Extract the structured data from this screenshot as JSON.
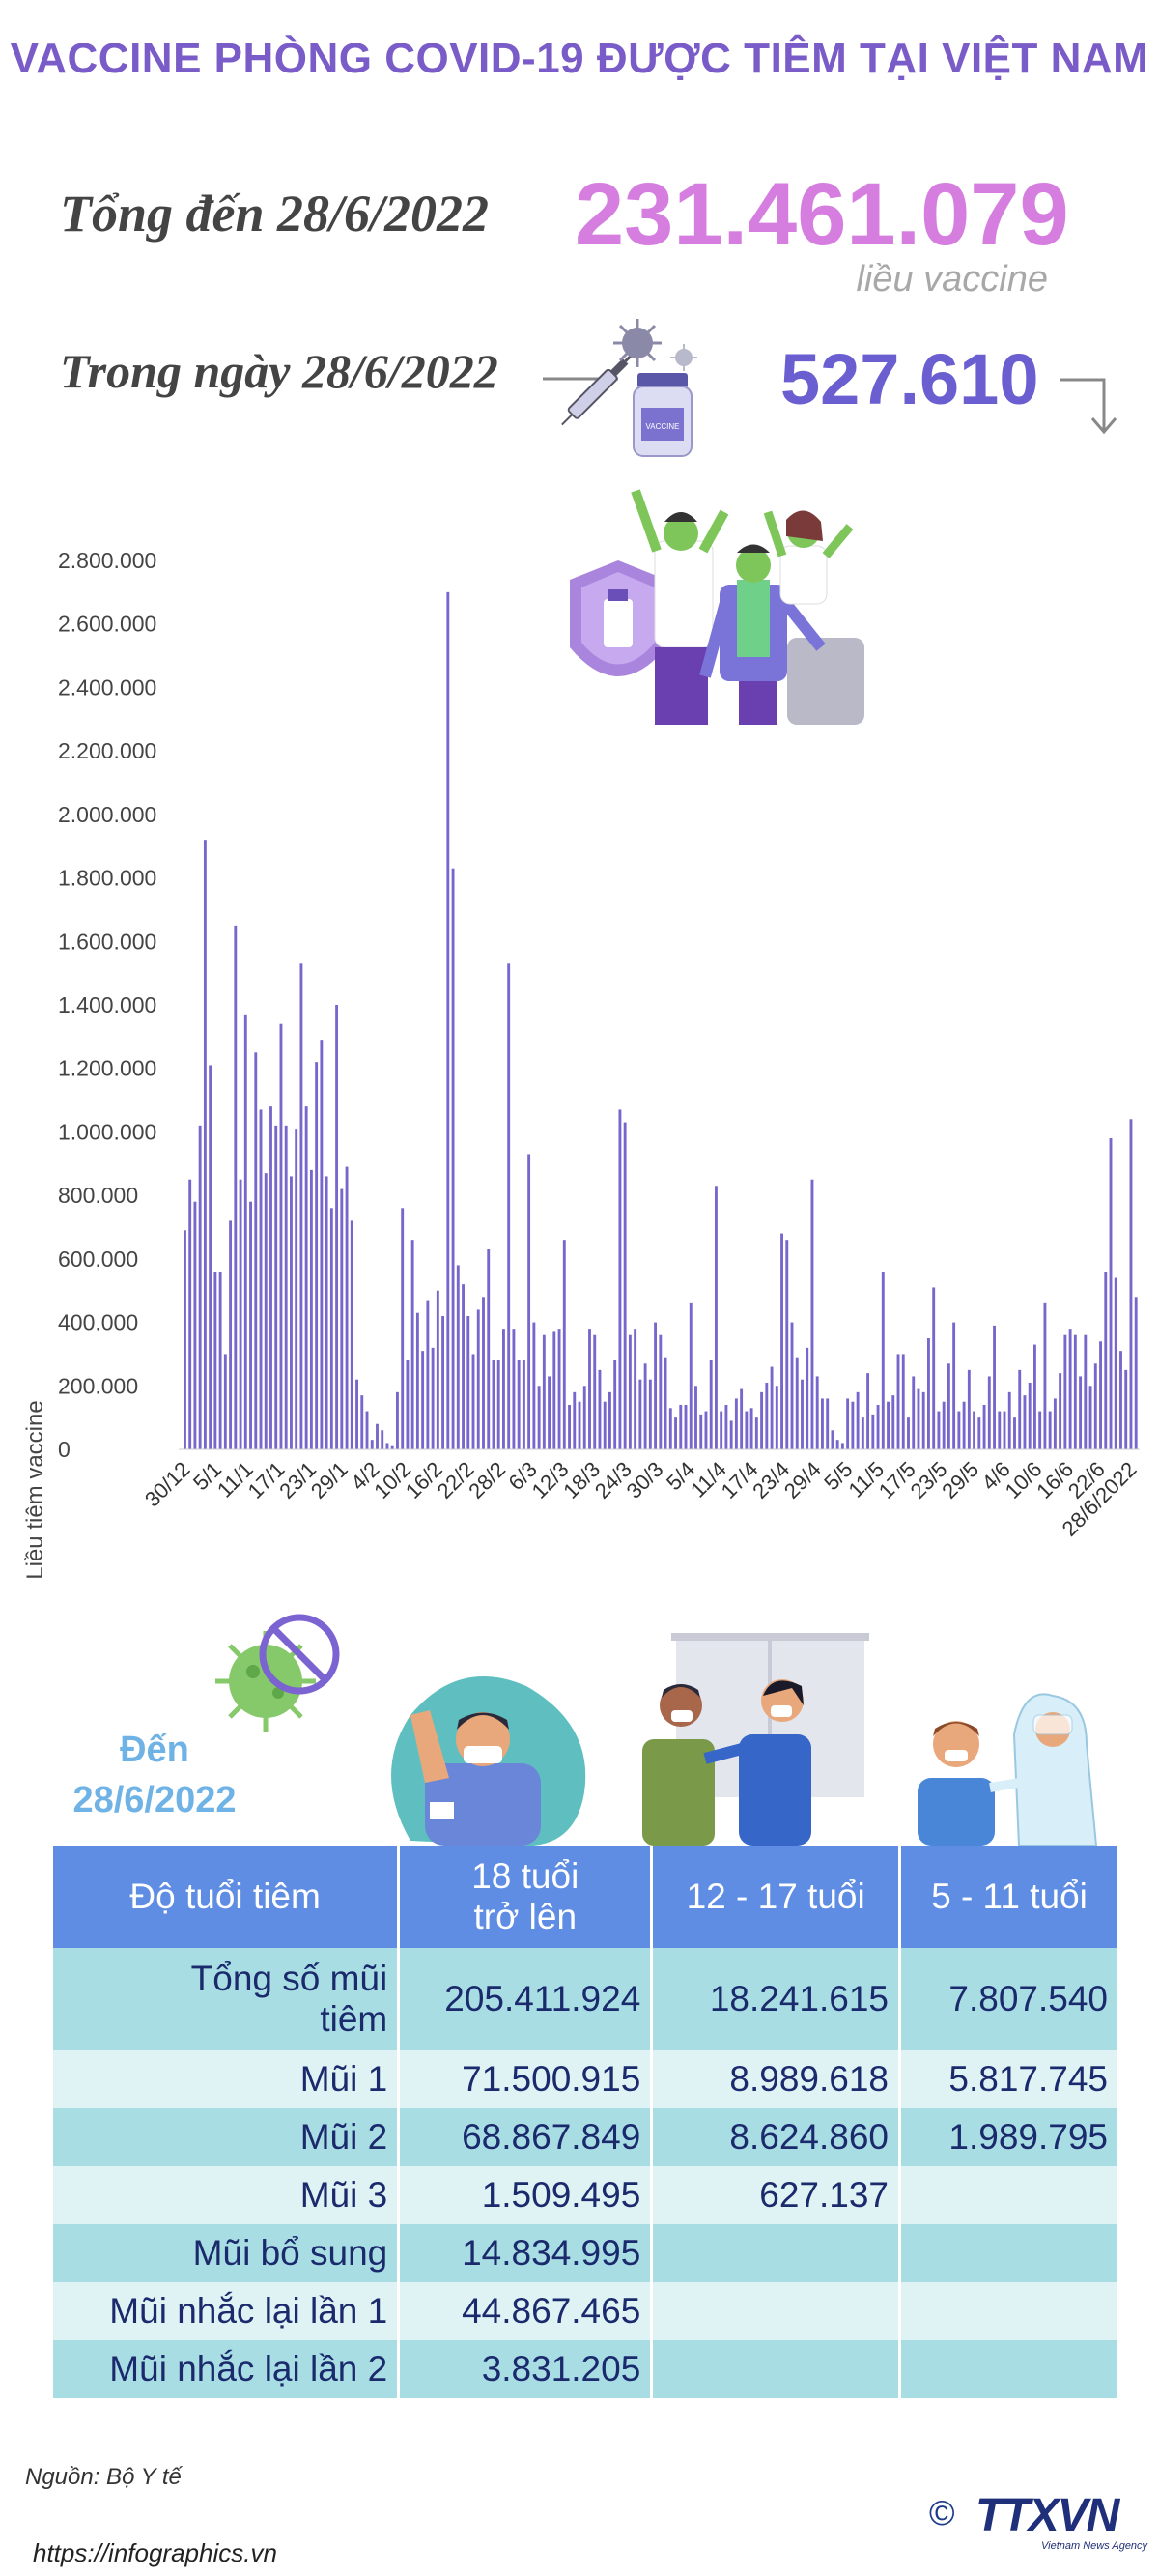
{
  "header": {
    "title": "VACCINE PHÒNG COVID-19 ĐƯỢC TIÊM TẠI VIỆT NAM"
  },
  "summary": {
    "total_label": "Tổng đến 28/6/2022",
    "total_value": "231.461.079",
    "total_unit": "liều vaccine",
    "daily_label": "Trong ngày 28/6/2022",
    "daily_value": "527.610"
  },
  "icons": [
    "syringe-vial-icon",
    "virus-icon",
    "down-arrow-icon",
    "celebrating-people-illustration",
    "no-virus-icon",
    "vaccinated-man-illustration",
    "nurse-vaccinating-illustration",
    "child-vaccination-illustration"
  ],
  "colors": {
    "title": "#7a5cc8",
    "total": "#d67ee0",
    "daily": "#6a5ed0",
    "bar": "#7766cc",
    "table_header": "#5f8de3"
  },
  "chart_data": {
    "type": "bar",
    "ylabel": "Liều tiêm vaccine",
    "xlabel": "",
    "ylim": [
      0,
      2800000
    ],
    "yticks": [
      "0",
      "200.000",
      "400.000",
      "600.000",
      "800.000",
      "1.000.000",
      "1.200.000",
      "1.400.000",
      "1.600.000",
      "1.800.000",
      "2.000.000",
      "2.200.000",
      "2.400.000",
      "2.600.000",
      "2.800.000"
    ],
    "x_tick_labels": [
      "30/12",
      "5/1",
      "11/1",
      "17/1",
      "23/1",
      "29/1",
      "4/2",
      "10/2",
      "16/2",
      "22/2",
      "28/2",
      "6/3",
      "12/3",
      "18/3",
      "24/3",
      "30/3",
      "5/4",
      "11/4",
      "17/4",
      "23/4",
      "29/4",
      "5/5",
      "11/5",
      "17/5",
      "23/5",
      "29/5",
      "4/6",
      "10/6",
      "16/6",
      "22/6",
      "28/6/2022"
    ],
    "values": [
      690000,
      850000,
      780000,
      1020000,
      1920000,
      1210000,
      560000,
      560000,
      300000,
      720000,
      1650000,
      850000,
      1370000,
      780000,
      1250000,
      1070000,
      870000,
      1080000,
      1020000,
      1340000,
      1020000,
      860000,
      1010000,
      1530000,
      1080000,
      880000,
      1220000,
      1290000,
      860000,
      760000,
      1400000,
      820000,
      890000,
      720000,
      220000,
      170000,
      120000,
      30000,
      80000,
      60000,
      20000,
      10000,
      180000,
      760000,
      280000,
      660000,
      430000,
      310000,
      470000,
      320000,
      500000,
      420000,
      2700000,
      1830000,
      580000,
      520000,
      420000,
      300000,
      440000,
      480000,
      630000,
      280000,
      280000,
      380000,
      1530000,
      380000,
      280000,
      280000,
      930000,
      400000,
      200000,
      360000,
      230000,
      370000,
      380000,
      660000,
      140000,
      180000,
      150000,
      200000,
      380000,
      360000,
      250000,
      150000,
      180000,
      280000,
      1070000,
      1030000,
      360000,
      380000,
      220000,
      270000,
      220000,
      400000,
      360000,
      290000,
      130000,
      100000,
      140000,
      140000,
      460000,
      200000,
      110000,
      120000,
      280000,
      830000,
      120000,
      140000,
      90000,
      160000,
      190000,
      120000,
      130000,
      100000,
      180000,
      210000,
      260000,
      200000,
      680000,
      660000,
      400000,
      290000,
      220000,
      320000,
      850000,
      230000,
      160000,
      160000,
      60000,
      30000,
      20000,
      160000,
      150000,
      180000,
      100000,
      240000,
      110000,
      140000,
      560000,
      150000,
      170000,
      300000,
      300000,
      100000,
      230000,
      190000,
      180000,
      350000,
      510000,
      120000,
      150000,
      270000,
      400000,
      120000,
      150000,
      250000,
      120000,
      100000,
      140000,
      230000,
      390000,
      120000,
      120000,
      180000,
      100000,
      250000,
      170000,
      210000,
      330000,
      120000,
      460000,
      120000,
      160000,
      240000,
      360000,
      380000,
      360000,
      230000,
      360000,
      200000,
      270000,
      340000,
      560000,
      980000,
      540000,
      310000,
      250000,
      1040000,
      480000
    ]
  },
  "section2": {
    "den_label": "Đến 28/6/2022"
  },
  "table": {
    "headers": [
      "Độ tuổi tiêm",
      "18 tuổi trở lên",
      "12 - 17 tuổi",
      "5 - 11 tuổi"
    ],
    "rows": [
      {
        "label": "Tổng số mũi tiêm",
        "cells": [
          "205.411.924",
          "18.241.615",
          "7.807.540"
        ]
      },
      {
        "label": "Mũi 1",
        "cells": [
          "71.500.915",
          "8.989.618",
          "5.817.745"
        ]
      },
      {
        "label": "Mũi 2",
        "cells": [
          "68.867.849",
          "8.624.860",
          "1.989.795"
        ]
      },
      {
        "label": "Mũi 3",
        "cells": [
          "1.509.495",
          "627.137",
          ""
        ]
      },
      {
        "label": "Mũi bổ sung",
        "cells": [
          "14.834.995",
          "",
          ""
        ]
      },
      {
        "label": "Mũi nhắc lại lần 1",
        "cells": [
          "44.867.465",
          "",
          ""
        ]
      },
      {
        "label": "Mũi nhắc lại lần 2",
        "cells": [
          "3.831.205",
          "",
          ""
        ]
      }
    ]
  },
  "footer": {
    "source": "Nguồn: Bộ Y tế",
    "url": "https://infographics.vn",
    "copyright": "©",
    "logo": "TTXVN",
    "logo_sub": "Vietnam News Agency"
  }
}
